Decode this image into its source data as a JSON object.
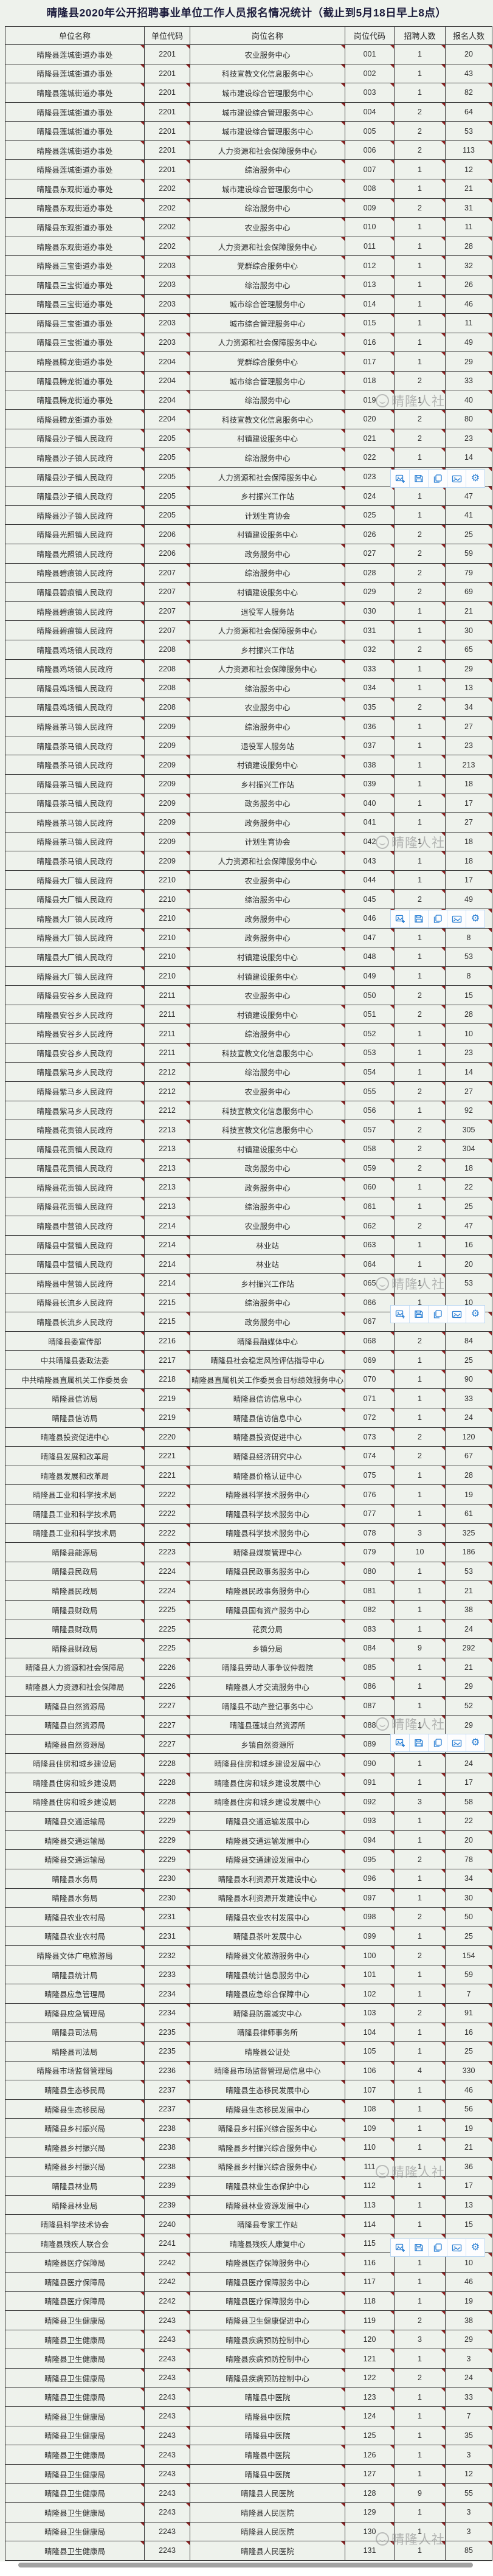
{
  "title": "晴隆县2020年公开招聘事业单位工作人员报名情况统计（截止到5月18日早上8点）",
  "columns": [
    "单位名称",
    "单位代码",
    "岗位名称",
    "岗位代码",
    "招聘人数",
    "报名人数"
  ],
  "rows": [
    [
      "晴隆县莲城街道办事处",
      "2201",
      "农业服务中心",
      "001",
      "1",
      "20"
    ],
    [
      "晴隆县莲城街道办事处",
      "2201",
      "科技宣教文化信息服务中心",
      "002",
      "1",
      "43"
    ],
    [
      "晴隆县莲城街道办事处",
      "2201",
      "城市建设综合管理服务中心",
      "003",
      "1",
      "82"
    ],
    [
      "晴隆县莲城街道办事处",
      "2201",
      "城市建设综合管理服务中心",
      "004",
      "2",
      "64"
    ],
    [
      "晴隆县莲城街道办事处",
      "2201",
      "城市建设综合管理服务中心",
      "005",
      "2",
      "53"
    ],
    [
      "晴隆县莲城街道办事处",
      "2201",
      "人力资源和社会保障服务中心",
      "006",
      "2",
      "113"
    ],
    [
      "晴隆县莲城街道办事处",
      "2201",
      "综治服务中心",
      "007",
      "1",
      "12"
    ],
    [
      "晴隆县东观街道办事处",
      "2202",
      "城市建设综合管理服务中心",
      "008",
      "1",
      "21"
    ],
    [
      "晴隆县东观街道办事处",
      "2202",
      "综治服务中心",
      "009",
      "2",
      "31"
    ],
    [
      "晴隆县东观街道办事处",
      "2202",
      "农业服务中心",
      "010",
      "1",
      "11"
    ],
    [
      "晴隆县东观街道办事处",
      "2202",
      "人力资源和社会保障服务中心",
      "011",
      "1",
      "28"
    ],
    [
      "晴隆县三宝街道办事处",
      "2203",
      "党群综合服务中心",
      "012",
      "1",
      "32"
    ],
    [
      "晴隆县三宝街道办事处",
      "2203",
      "综治服务中心",
      "013",
      "1",
      "26"
    ],
    [
      "晴隆县三宝街道办事处",
      "2203",
      "城市综合管理服务中心",
      "014",
      "1",
      "46"
    ],
    [
      "晴隆县三宝街道办事处",
      "2203",
      "城市综合管理服务中心",
      "015",
      "1",
      "11"
    ],
    [
      "晴隆县三宝街道办事处",
      "2203",
      "人力资源和社会保障服务中心",
      "016",
      "1",
      "49"
    ],
    [
      "晴隆县腾龙街道办事处",
      "2204",
      "党群综合服务中心",
      "017",
      "1",
      "29"
    ],
    [
      "晴隆县腾龙街道办事处",
      "2204",
      "城市综合管理服务中心",
      "018",
      "2",
      "33"
    ],
    [
      "晴隆县腾龙街道办事处",
      "2204",
      "综治服务中心",
      "019",
      "1",
      "40"
    ],
    [
      "晴隆县腾龙街道办事处",
      "2204",
      "科技宣教文化信息服务中心",
      "020",
      "2",
      "80"
    ],
    [
      "晴隆县沙子镇人民政府",
      "2205",
      "村镇建设服务中心",
      "021",
      "2",
      "23"
    ],
    [
      "晴隆县沙子镇人民政府",
      "2205",
      "综治服务中心",
      "022",
      "1",
      "14"
    ],
    [
      "晴隆县沙子镇人民政府",
      "2205",
      "人力资源和社会保障服务中心",
      "023",
      "",
      ""
    ],
    [
      "晴隆县沙子镇人民政府",
      "2205",
      "乡村振兴工作站",
      "024",
      "1",
      "47"
    ],
    [
      "晴隆县沙子镇人民政府",
      "2205",
      "计划生育协会",
      "025",
      "1",
      "41"
    ],
    [
      "晴隆县光照镇人民政府",
      "2206",
      "村镇建设服务中心",
      "026",
      "2",
      "25"
    ],
    [
      "晴隆县光照镇人民政府",
      "2206",
      "政务服务中心",
      "027",
      "2",
      "59"
    ],
    [
      "晴隆县碧痕镇人民政府",
      "2207",
      "综治服务中心",
      "028",
      "2",
      "79"
    ],
    [
      "晴隆县碧痕镇人民政府",
      "2207",
      "村镇建设服务中心",
      "029",
      "2",
      "69"
    ],
    [
      "晴隆县碧痕镇人民政府",
      "2207",
      "退役军人服务站",
      "030",
      "1",
      "21"
    ],
    [
      "晴隆县碧痕镇人民政府",
      "2207",
      "人力资源和社会保障服务中心",
      "031",
      "1",
      "30"
    ],
    [
      "晴隆县鸡场镇人民政府",
      "2208",
      "乡村振兴工作站",
      "032",
      "2",
      "65"
    ],
    [
      "晴隆县鸡场镇人民政府",
      "2208",
      "人力资源和社会保障服务中心",
      "033",
      "1",
      "29"
    ],
    [
      "晴隆县鸡场镇人民政府",
      "2208",
      "综治服务中心",
      "034",
      "1",
      "13"
    ],
    [
      "晴隆县鸡场镇人民政府",
      "2208",
      "农业服务中心",
      "035",
      "2",
      "34"
    ],
    [
      "晴隆县茶马镇人民政府",
      "2209",
      "综治服务中心",
      "036",
      "1",
      "27"
    ],
    [
      "晴隆县茶马镇人民政府",
      "2209",
      "退役军人服务站",
      "037",
      "1",
      "23"
    ],
    [
      "晴隆县茶马镇人民政府",
      "2209",
      "村镇建设服务中心",
      "038",
      "1",
      "213"
    ],
    [
      "晴隆县茶马镇人民政府",
      "2209",
      "乡村振兴工作站",
      "039",
      "1",
      "18"
    ],
    [
      "晴隆县茶马镇人民政府",
      "2209",
      "政务服务中心",
      "040",
      "1",
      "17"
    ],
    [
      "晴隆县茶马镇人民政府",
      "2209",
      "政务服务中心",
      "041",
      "1",
      "27"
    ],
    [
      "晴隆县茶马镇人民政府",
      "2209",
      "计划生育协会",
      "042",
      "1",
      "18"
    ],
    [
      "晴隆县茶马镇人民政府",
      "2209",
      "人力资源和社会保障服务中心",
      "043",
      "1",
      "18"
    ],
    [
      "晴隆县大厂镇人民政府",
      "2210",
      "农业服务中心",
      "044",
      "1",
      "17"
    ],
    [
      "晴隆县大厂镇人民政府",
      "2210",
      "综治服务中心",
      "045",
      "2",
      "49"
    ],
    [
      "晴隆县大厂镇人民政府",
      "2210",
      "政务服务中心",
      "046",
      "",
      ""
    ],
    [
      "晴隆县大厂镇人民政府",
      "2210",
      "政务服务中心",
      "047",
      "1",
      "8"
    ],
    [
      "晴隆县大厂镇人民政府",
      "2210",
      "村镇建设服务中心",
      "048",
      "1",
      "53"
    ],
    [
      "晴隆县大厂镇人民政府",
      "2210",
      "村镇建设服务中心",
      "049",
      "1",
      "8"
    ],
    [
      "晴隆县安谷乡人民政府",
      "2211",
      "农业服务中心",
      "050",
      "2",
      "15"
    ],
    [
      "晴隆县安谷乡人民政府",
      "2211",
      "村镇建设服务中心",
      "051",
      "2",
      "28"
    ],
    [
      "晴隆县安谷乡人民政府",
      "2211",
      "综治服务中心",
      "052",
      "1",
      "10"
    ],
    [
      "晴隆县安谷乡人民政府",
      "2211",
      "科技宣教文化信息服务中心",
      "053",
      "1",
      "23"
    ],
    [
      "晴隆县紫马乡人民政府",
      "2212",
      "综治服务中心",
      "054",
      "1",
      "14"
    ],
    [
      "晴隆县紫马乡人民政府",
      "2212",
      "农业服务中心",
      "055",
      "2",
      "27"
    ],
    [
      "晴隆县紫马乡人民政府",
      "2212",
      "科技宣教文化信息服务中心",
      "056",
      "1",
      "92"
    ],
    [
      "晴隆县花贡镇人民政府",
      "2213",
      "科技宣教文化信息服务中心",
      "057",
      "2",
      "305"
    ],
    [
      "晴隆县花贡镇人民政府",
      "2213",
      "村镇建设服务中心",
      "058",
      "2",
      "304"
    ],
    [
      "晴隆县花贡镇人民政府",
      "2213",
      "政务服务中心",
      "059",
      "2",
      "18"
    ],
    [
      "晴隆县花贡镇人民政府",
      "2213",
      "政务服务中心",
      "060",
      "1",
      "22"
    ],
    [
      "晴隆县花贡镇人民政府",
      "2213",
      "综治服务中心",
      "061",
      "1",
      "25"
    ],
    [
      "晴隆县中营镇人民政府",
      "2214",
      "农业服务中心",
      "062",
      "2",
      "47"
    ],
    [
      "晴隆县中营镇人民政府",
      "2214",
      "林业站",
      "063",
      "1",
      "16"
    ],
    [
      "晴隆县中营镇人民政府",
      "2214",
      "林业站",
      "064",
      "1",
      "20"
    ],
    [
      "晴隆县中营镇人民政府",
      "2214",
      "乡村振兴工作站",
      "065",
      "1",
      "53"
    ],
    [
      "晴隆县长流乡人民政府",
      "2215",
      "综治服务中心",
      "066",
      "1",
      "10"
    ],
    [
      "晴隆县长流乡人民政府",
      "2215",
      "政务服务中心",
      "067",
      "",
      ""
    ],
    [
      "晴隆县委宣传部",
      "2216",
      "晴隆县融媒体中心",
      "068",
      "2",
      "84"
    ],
    [
      "中共晴隆县委政法委",
      "2217",
      "晴隆县社会稳定风险评估指导中心",
      "069",
      "1",
      "25"
    ],
    [
      "中共晴隆县直属机关工作委员会",
      "2218",
      "晴隆县直属机关工作委员会目标绩效服务中心",
      "070",
      "1",
      "90"
    ],
    [
      "晴隆县信访局",
      "2219",
      "晴隆县信访信息中心",
      "071",
      "1",
      "33"
    ],
    [
      "晴隆县信访局",
      "2219",
      "晴隆县信访信息中心",
      "072",
      "1",
      "24"
    ],
    [
      "晴隆县投资促进中心",
      "2220",
      "晴隆县投资促进中心",
      "073",
      "2",
      "120"
    ],
    [
      "晴隆县发展和改革局",
      "2221",
      "晴隆县经济研究中心",
      "074",
      "2",
      "67"
    ],
    [
      "晴隆县发展和改革局",
      "2221",
      "晴隆县价格认证中心",
      "075",
      "1",
      "28"
    ],
    [
      "晴隆县工业和科学技术局",
      "2222",
      "晴隆县科学技术服务中心",
      "076",
      "1",
      "19"
    ],
    [
      "晴隆县工业和科学技术局",
      "2222",
      "晴隆县科学技术服务中心",
      "077",
      "1",
      "61"
    ],
    [
      "晴隆县工业和科学技术局",
      "2222",
      "晴隆县科学技术服务中心",
      "078",
      "3",
      "325"
    ],
    [
      "晴隆县能源局",
      "2223",
      "晴隆县煤炭管理中心",
      "079",
      "10",
      "186"
    ],
    [
      "晴隆县民政局",
      "2224",
      "晴隆县民政事务服务中心",
      "080",
      "1",
      "53"
    ],
    [
      "晴隆县民政局",
      "2224",
      "晴隆县民政事务服务中心",
      "081",
      "1",
      "21"
    ],
    [
      "晴隆县财政局",
      "2225",
      "晴隆县国有资产服务中心",
      "082",
      "1",
      "38"
    ],
    [
      "晴隆县财政局",
      "2225",
      "花贡分局",
      "083",
      "1",
      "24"
    ],
    [
      "晴隆县财政局",
      "2225",
      "乡镇分局",
      "084",
      "9",
      "292"
    ],
    [
      "晴隆县人力资源和社会保障局",
      "2226",
      "晴隆县劳动人事争议仲裁院",
      "085",
      "1",
      "21"
    ],
    [
      "晴隆县人力资源和社会保障局",
      "2226",
      "晴隆县人才交流服务中心",
      "086",
      "1",
      "29"
    ],
    [
      "晴隆县自然资源局",
      "2227",
      "晴隆县不动产登记事务中心",
      "087",
      "1",
      "52"
    ],
    [
      "晴隆县自然资源局",
      "2227",
      "晴隆县莲城自然资源所",
      "088",
      "1",
      "29"
    ],
    [
      "晴隆县自然资源局",
      "2227",
      "乡镇自然资源所",
      "089",
      "",
      ""
    ],
    [
      "晴隆县住房和城乡建设局",
      "2228",
      "晴隆县住房和城乡建设发展中心",
      "090",
      "1",
      "24"
    ],
    [
      "晴隆县住房和城乡建设局",
      "2228",
      "晴隆县住房和城乡建设发展中心",
      "091",
      "1",
      "17"
    ],
    [
      "晴隆县住房和城乡建设局",
      "2228",
      "晴隆县住房和城乡建设发展中心",
      "092",
      "3",
      "58"
    ],
    [
      "晴隆县交通运输局",
      "2229",
      "晴隆县交通运输发展中心",
      "093",
      "1",
      "22"
    ],
    [
      "晴隆县交通运输局",
      "2229",
      "晴隆县交通运输发展中心",
      "094",
      "1",
      "20"
    ],
    [
      "晴隆县交通运输局",
      "2229",
      "晴隆县交通建设发展中心",
      "095",
      "2",
      "78"
    ],
    [
      "晴隆县水务局",
      "2230",
      "晴隆县水利资源开发建设中心",
      "096",
      "1",
      "34"
    ],
    [
      "晴隆县水务局",
      "2230",
      "晴隆县水利资源开发建设中心",
      "097",
      "1",
      "30"
    ],
    [
      "晴隆县农业农村局",
      "2231",
      "晴隆县农业农村发展中心",
      "098",
      "2",
      "50"
    ],
    [
      "晴隆县农业农村局",
      "2231",
      "晴隆县茶叶发展中心",
      "099",
      "1",
      "25"
    ],
    [
      "晴隆县文体广电旅游局",
      "2232",
      "晴隆县文化旅游服务中心",
      "100",
      "2",
      "154"
    ],
    [
      "晴隆县统计局",
      "2233",
      "晴隆县统计信息服务中心",
      "101",
      "1",
      "59"
    ],
    [
      "晴隆县应急管理局",
      "2234",
      "晴隆县应急综合保障中心",
      "102",
      "1",
      "7"
    ],
    [
      "晴隆县应急管理局",
      "2234",
      "晴隆县防震减灾中心",
      "103",
      "2",
      "91"
    ],
    [
      "晴隆县司法局",
      "2235",
      "晴隆县律师事务所",
      "104",
      "1",
      "16"
    ],
    [
      "晴隆县司法局",
      "2235",
      "晴隆县公证处",
      "105",
      "1",
      "25"
    ],
    [
      "晴隆县市场监督管理局",
      "2236",
      "晴隆县市场监督管理局信息中心",
      "106",
      "4",
      "330"
    ],
    [
      "晴隆县生态移民局",
      "2237",
      "晴隆县生态移民发展中心",
      "107",
      "1",
      "46"
    ],
    [
      "晴隆县生态移民局",
      "2237",
      "晴隆县生态移民发展中心",
      "108",
      "1",
      "56"
    ],
    [
      "晴隆县乡村振兴局",
      "2238",
      "晴隆县乡村振兴综合服务中心",
      "109",
      "1",
      "19"
    ],
    [
      "晴隆县乡村振兴局",
      "2238",
      "晴隆县乡村振兴综合服务中心",
      "110",
      "1",
      "21"
    ],
    [
      "晴隆县乡村振兴局",
      "2238",
      "晴隆县乡村振兴综合服务中心",
      "111",
      "1",
      "36"
    ],
    [
      "晴隆县林业局",
      "2239",
      "晴隆县林业生态保护中心",
      "112",
      "1",
      "17"
    ],
    [
      "晴隆县林业局",
      "2239",
      "晴隆县林业资源发展中心",
      "113",
      "1",
      "13"
    ],
    [
      "晴隆县科学技术协会",
      "2240",
      "晴隆县专家工作站",
      "114",
      "1",
      "15"
    ],
    [
      "晴隆县残疾人联合会",
      "2241",
      "晴隆县残疾人康复中心",
      "115",
      "",
      ""
    ],
    [
      "晴隆县医疗保障局",
      "2242",
      "晴隆县医疗保障服务中心",
      "116",
      "1",
      "10"
    ],
    [
      "晴隆县医疗保障局",
      "2242",
      "晴隆县医疗保障服务中心",
      "117",
      "1",
      "46"
    ],
    [
      "晴隆县医疗保障局",
      "2242",
      "晴隆县医疗保障服务中心",
      "118",
      "1",
      "19"
    ],
    [
      "晴隆县卫生健康局",
      "2243",
      "晴隆县卫生健康促进中心",
      "119",
      "2",
      "38"
    ],
    [
      "晴隆县卫生健康局",
      "2243",
      "晴隆县疾病预防控制中心",
      "120",
      "3",
      "29"
    ],
    [
      "晴隆县卫生健康局",
      "2243",
      "晴隆县疾病预防控制中心",
      "121",
      "1",
      "3"
    ],
    [
      "晴隆县卫生健康局",
      "2243",
      "晴隆县疾病预防控制中心",
      "122",
      "2",
      "24"
    ],
    [
      "晴隆县卫生健康局",
      "2243",
      "晴隆县中医院",
      "123",
      "1",
      "33"
    ],
    [
      "晴隆县卫生健康局",
      "2243",
      "晴隆县中医院",
      "124",
      "1",
      "7"
    ],
    [
      "晴隆县卫生健康局",
      "2243",
      "晴隆县中医院",
      "125",
      "1",
      "35"
    ],
    [
      "晴隆县卫生健康局",
      "2243",
      "晴隆县中医院",
      "126",
      "1",
      "3"
    ],
    [
      "晴隆县卫生健康局",
      "2243",
      "晴隆县中医院",
      "127",
      "1",
      "12"
    ],
    [
      "晴隆县卫生健康局",
      "2243",
      "晴隆县人民医院",
      "128",
      "9",
      "55"
    ],
    [
      "晴隆县卫生健康局",
      "2243",
      "晴隆县人民医院",
      "129",
      "1",
      "3"
    ],
    [
      "晴隆县卫生健康局",
      "2243",
      "晴隆县人民医院",
      "130",
      "1",
      "3"
    ],
    [
      "晴隆县卫生健康局",
      "2243",
      "晴隆县人民医院",
      "131",
      "1",
      "85"
    ]
  ],
  "watermark": {
    "text": "晴隆人社",
    "positions_top": [
      644,
      1370,
      2096,
      2820,
      3556,
      4160
    ]
  },
  "toolbar": {
    "positions_top": [
      772,
      1496,
      2146,
      2851,
      3681
    ],
    "icons": [
      "add-image-icon",
      "save-icon",
      "copy-icon",
      "extract-image-icon",
      "settings-icon"
    ]
  },
  "colors": {
    "page_bg": "#eef2ec",
    "grid_border": "#3a3a3a",
    "title_text": "#1c1c3c",
    "comment_marker": "#8b2121",
    "toolbar_blue": "#2a7fd4",
    "watermark_gray": "#9a9a9a",
    "scrollbar_gray": "#a2a2a2"
  }
}
